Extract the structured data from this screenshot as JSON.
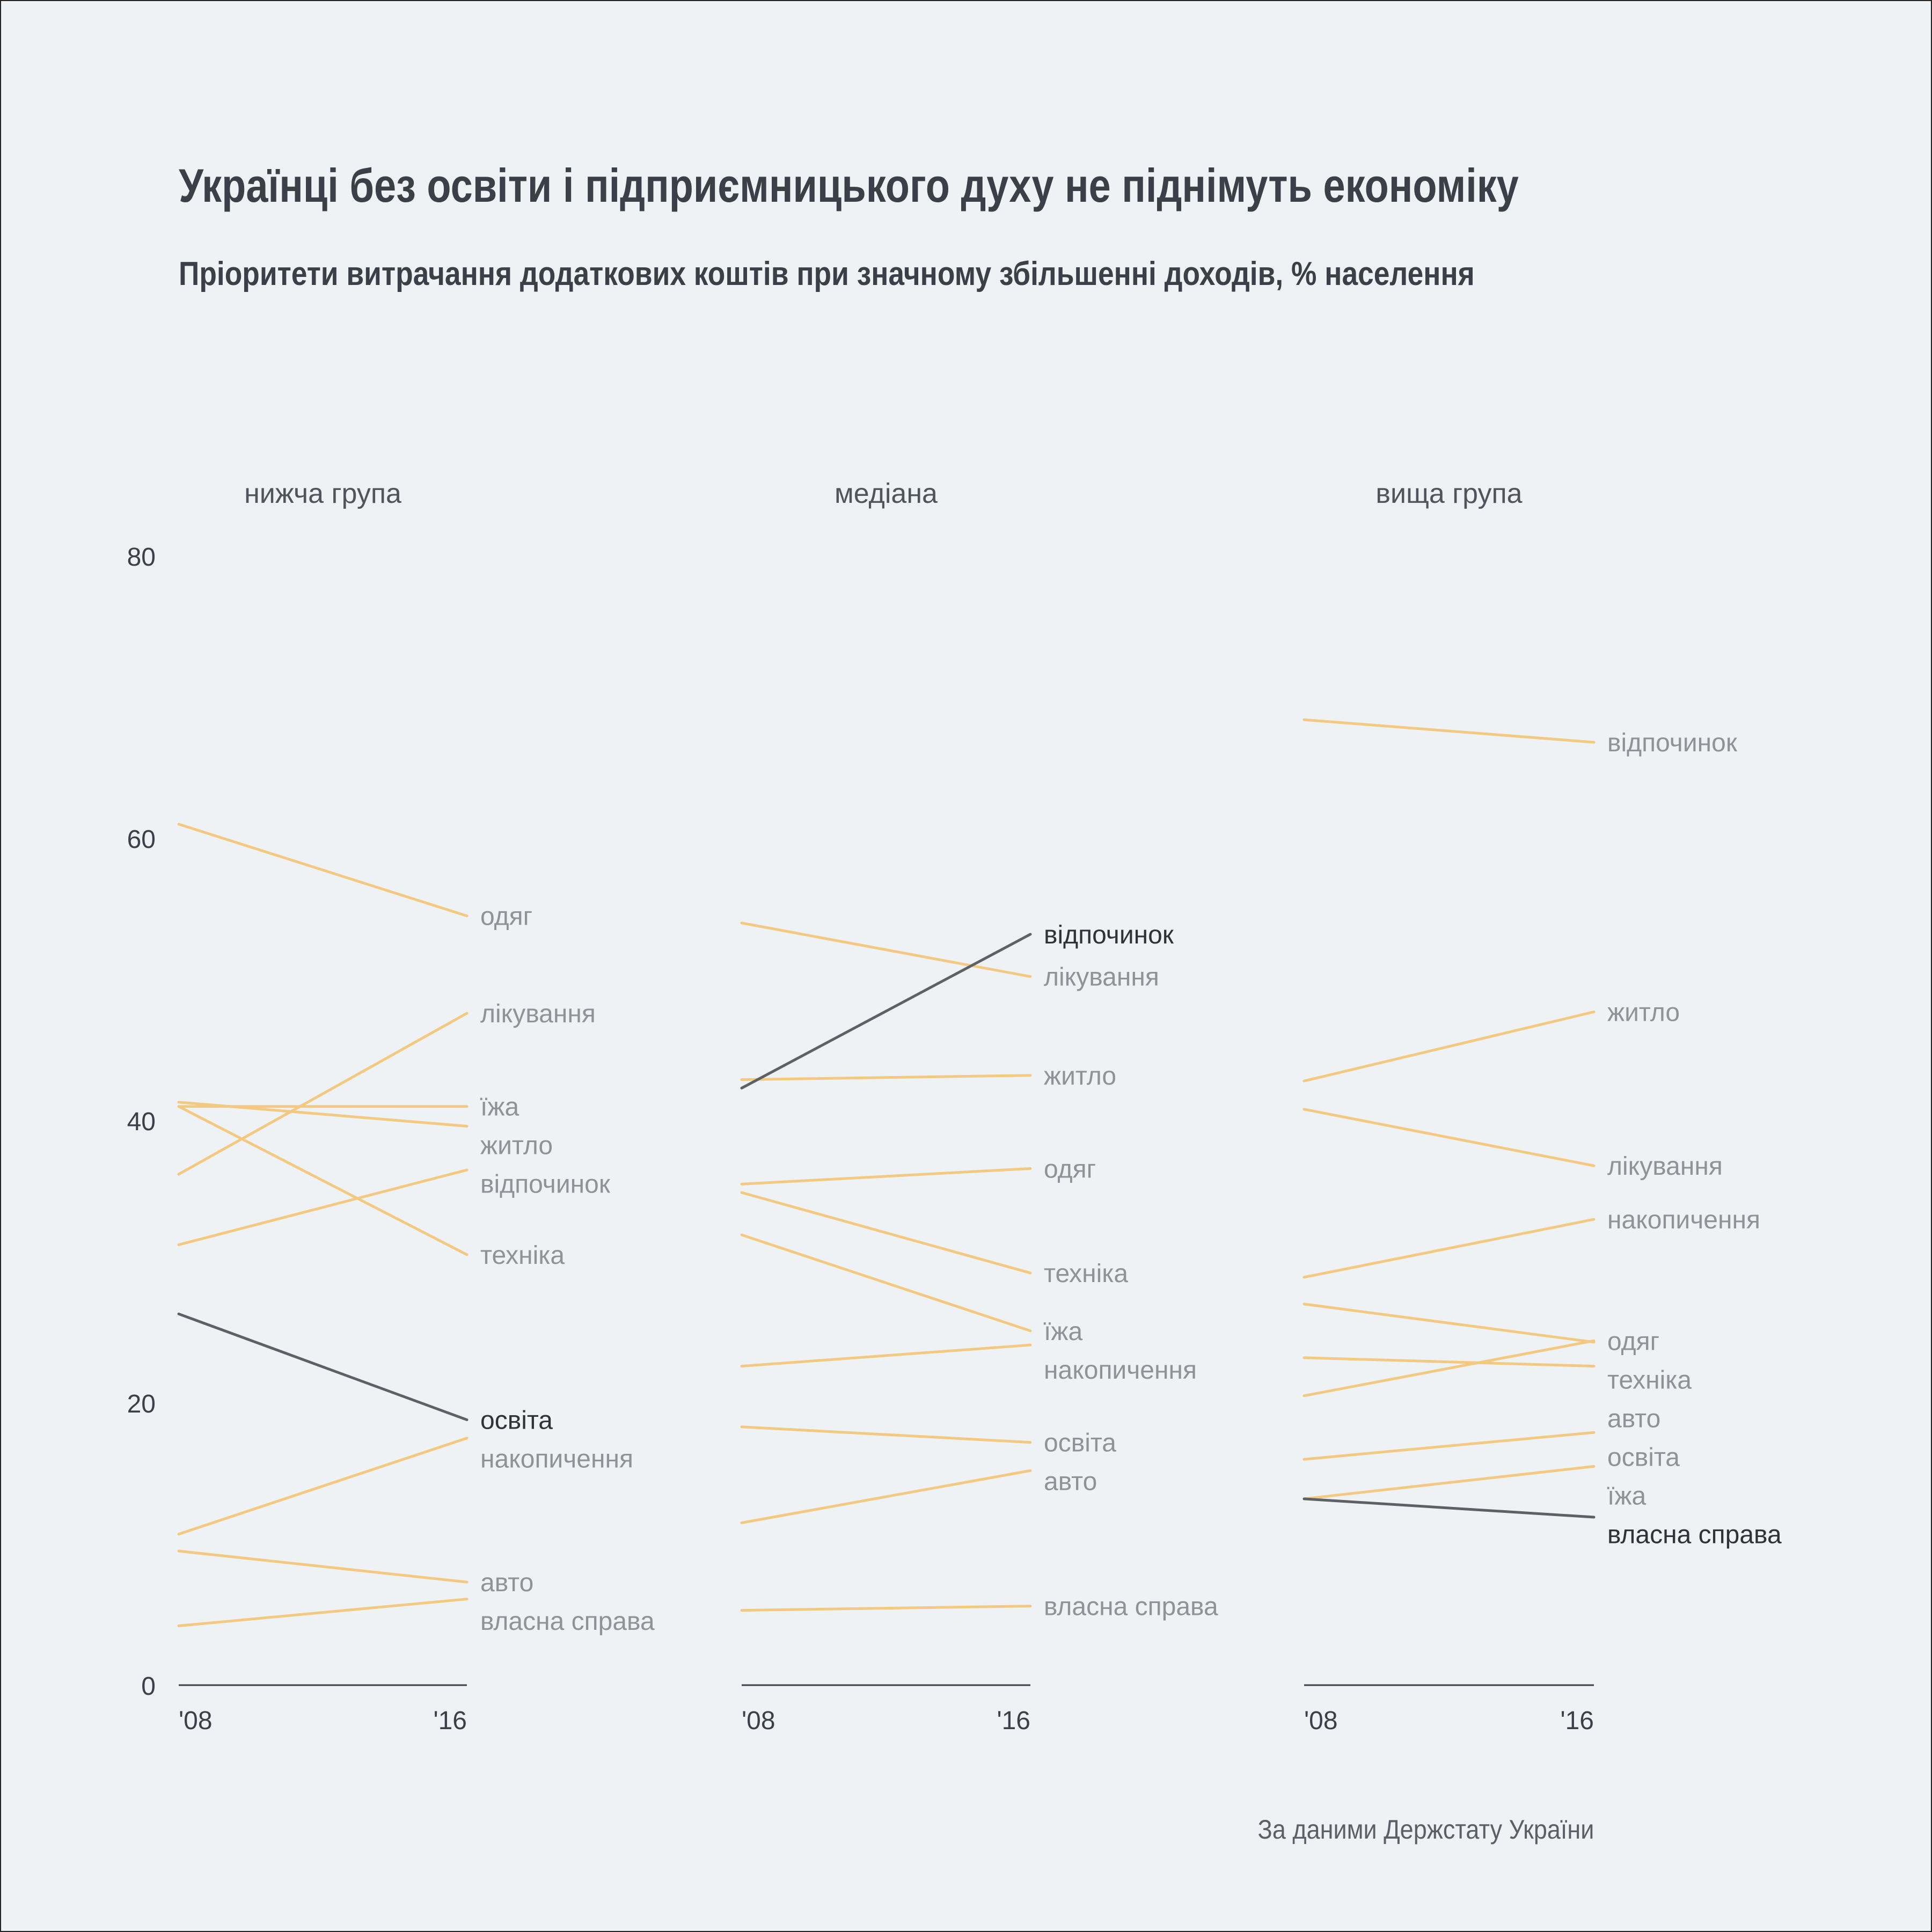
{
  "title": "Українці без освіти і підприємницького духу не піднімуть економіку",
  "subtitle": "Пріоритети витрачання додаткових коштів при значному збільшенні доходів, % населення",
  "source": "За даними Держстату України",
  "colors": {
    "background": "#eff2f5",
    "normal_line": "#f3c981",
    "highlight_line": "#5d6064",
    "normal_label": "#8f9296",
    "highlight_label": "#2f3237",
    "axis": "#3b3f47"
  },
  "chart_data": {
    "type": "line",
    "layout": "small multiples (slope charts)",
    "ylim": [
      0,
      80
    ],
    "y_ticks": [
      "0",
      "20",
      "40",
      "60",
      "80"
    ],
    "x": [
      "'08",
      "'16"
    ],
    "grid": false,
    "panels": [
      {
        "title": "нижча група",
        "highlight": "освіта",
        "series": [
          {
            "name": "одяг",
            "values": [
              61.0,
              54.5
            ]
          },
          {
            "name": "лікування",
            "values": [
              36.2,
              47.6
            ]
          },
          {
            "name": "їжа",
            "values": [
              41.0,
              41.0
            ]
          },
          {
            "name": "житло",
            "values": [
              41.3,
              39.6
            ]
          },
          {
            "name": "відпочинок",
            "values": [
              31.2,
              36.5
            ]
          },
          {
            "name": "техніка",
            "values": [
              41.0,
              30.5
            ]
          },
          {
            "name": "освіта",
            "values": [
              26.3,
              18.8
            ]
          },
          {
            "name": "накопичення",
            "values": [
              10.7,
              17.5
            ]
          },
          {
            "name": "авто",
            "values": [
              9.5,
              7.3
            ]
          },
          {
            "name": "власна справа",
            "values": [
              4.2,
              6.1
            ]
          }
        ]
      },
      {
        "title": "медіана",
        "highlight": "відпочинок",
        "series": [
          {
            "name": "відпочинок",
            "values": [
              42.3,
              53.2
            ]
          },
          {
            "name": "лікування",
            "values": [
              54.0,
              50.2
            ]
          },
          {
            "name": "житло",
            "values": [
              42.9,
              43.2
            ]
          },
          {
            "name": "одяг",
            "values": [
              35.5,
              36.6
            ]
          },
          {
            "name": "техніка",
            "values": [
              34.9,
              29.2
            ]
          },
          {
            "name": "їжа",
            "values": [
              31.9,
              25.1
            ]
          },
          {
            "name": "накопичення",
            "values": [
              22.6,
              24.1
            ]
          },
          {
            "name": "освіта",
            "values": [
              18.3,
              17.2
            ]
          },
          {
            "name": "авто",
            "values": [
              11.5,
              15.2
            ]
          },
          {
            "name": "власна справа",
            "values": [
              5.3,
              5.6
            ]
          }
        ]
      },
      {
        "title": "вища група",
        "highlight": "власна справа",
        "series": [
          {
            "name": "відпочинок",
            "values": [
              68.4,
              66.8
            ]
          },
          {
            "name": "житло",
            "values": [
              42.8,
              47.7
            ]
          },
          {
            "name": "лікування",
            "values": [
              40.8,
              36.8
            ]
          },
          {
            "name": "накопичення",
            "values": [
              28.9,
              33.0
            ]
          },
          {
            "name": "техніка",
            "values": [
              27.0,
              24.3
            ]
          },
          {
            "name": "одяг",
            "values": [
              20.5,
              24.4
            ]
          },
          {
            "name": "авто",
            "values": [
              23.2,
              22.6
            ]
          },
          {
            "name": "освіта",
            "values": [
              16.0,
              17.9
            ]
          },
          {
            "name": "їжа",
            "values": [
              13.2,
              15.5
            ]
          },
          {
            "name": "власна справа",
            "values": [
              13.2,
              11.9
            ]
          }
        ]
      }
    ]
  }
}
